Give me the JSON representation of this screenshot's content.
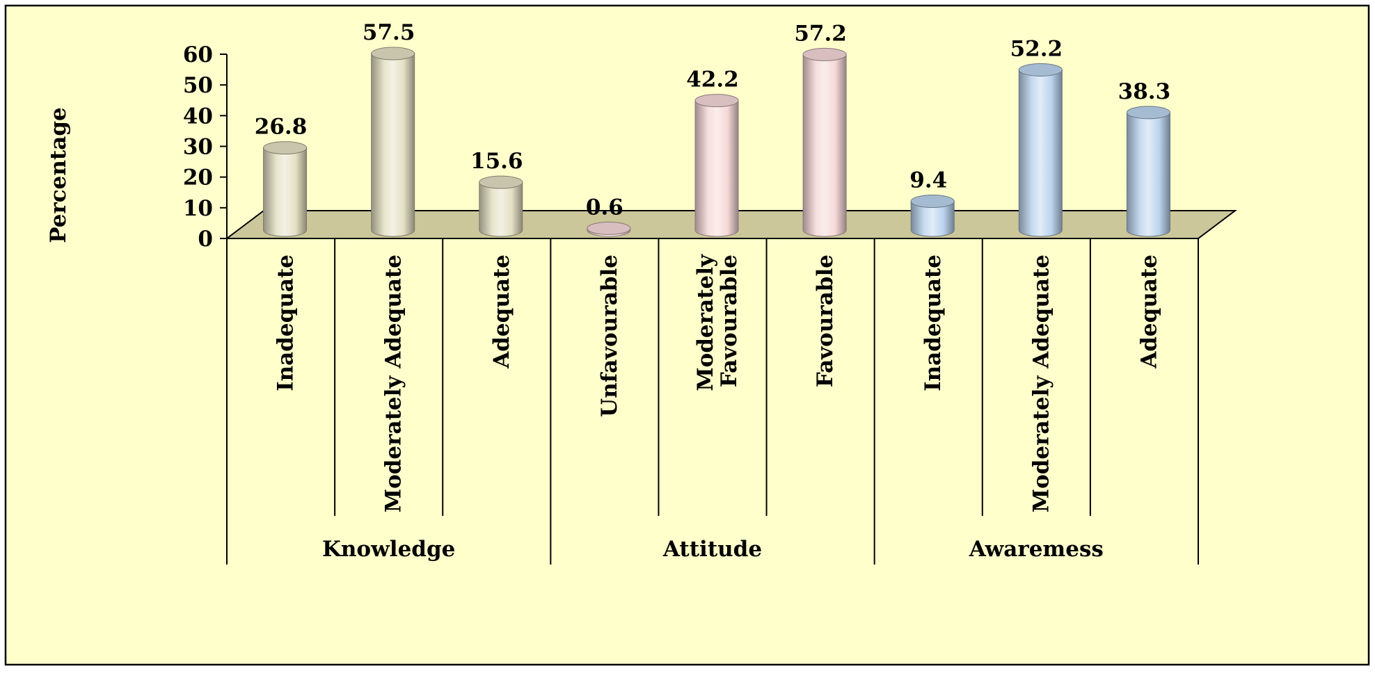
{
  "chart_data": {
    "type": "bar",
    "style": "3d-cylinder",
    "title": "",
    "xlabel": "",
    "ylabel": "Percentage",
    "ylim": [
      0,
      60
    ],
    "yticks": [
      0,
      10,
      20,
      30,
      40,
      50,
      60
    ],
    "groups": [
      {
        "name": "Knowledge",
        "color": "#e4e0c4",
        "bars": [
          {
            "label": "Inadequate",
            "value": 26.8
          },
          {
            "label": "Moderately Adequate",
            "value": 57.5
          },
          {
            "label": "Adequate",
            "value": 15.6
          }
        ]
      },
      {
        "name": "Attitude",
        "color": "#f6d8d8",
        "bars": [
          {
            "label": "Unfavourable",
            "value": 0.6
          },
          {
            "label": "Moderately Favourable",
            "value": 42.2
          },
          {
            "label": "Favourable",
            "value": 57.2
          }
        ]
      },
      {
        "name": "Awaremess",
        "color": "#bcd4ee",
        "bars": [
          {
            "label": "Inadequate",
            "value": 9.4
          },
          {
            "label": "Moderately Adequate",
            "value": 52.2
          },
          {
            "label": "Adequate",
            "value": 38.3
          }
        ]
      }
    ]
  }
}
